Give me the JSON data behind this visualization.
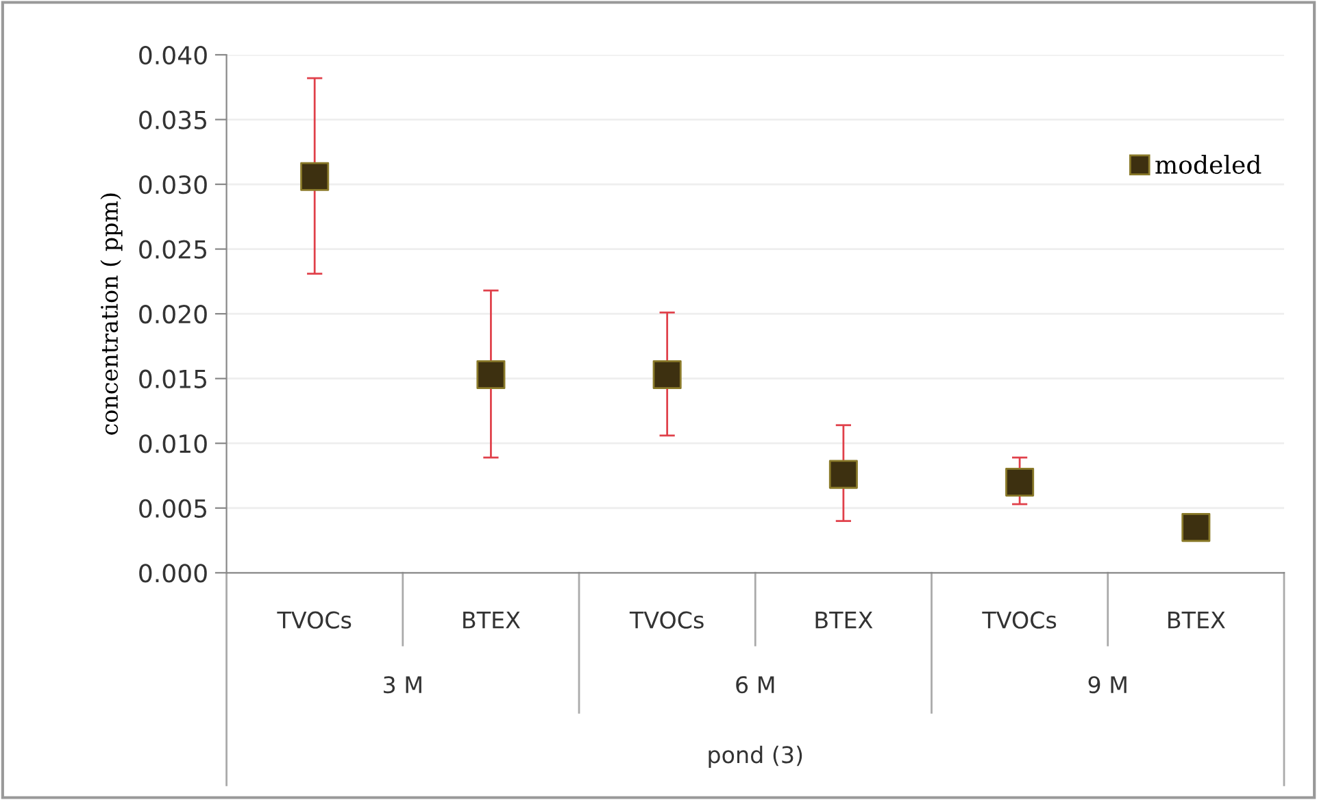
{
  "chart_data": {
    "type": "scatter",
    "ylabel": "concentration ( ppm)",
    "categories": [
      "TVOCs",
      "BTEX",
      "TVOCs",
      "BTEX",
      "TVOCs",
      "BTEX"
    ],
    "annotations": [
      "3 M",
      "6 M",
      "9 M",
      "pond (3)"
    ],
    "series": [
      {
        "name": "modeled",
        "color": "#3d3010",
        "values": [
          0.0306,
          0.0153,
          0.0153,
          0.0076,
          0.007,
          0.0035
        ],
        "errors": [
          [
            0.0231,
            0.0382
          ],
          [
            0.0089,
            0.0218
          ],
          [
            0.0106,
            0.0201
          ],
          [
            0.004,
            0.0114
          ],
          [
            0.0053,
            0.0089
          ],
          null
        ]
      }
    ],
    "ylim": [
      0,
      0.04
    ],
    "yticks": [
      {
        "value": 0,
        "label": "0.000"
      },
      {
        "value": 0.005,
        "label": "0.005"
      },
      {
        "value": 0.01,
        "label": "0.010"
      },
      {
        "value": 0.015,
        "label": "0.015"
      },
      {
        "value": 0.02,
        "label": "0.020"
      },
      {
        "value": 0.025,
        "label": "0.025"
      },
      {
        "value": 0.03,
        "label": "0.030"
      },
      {
        "value": 0.035,
        "label": "0.035"
      },
      {
        "value": 0.04,
        "label": "0.040"
      }
    ],
    "grid": "y",
    "legend": "top right",
    "marker": "square"
  }
}
